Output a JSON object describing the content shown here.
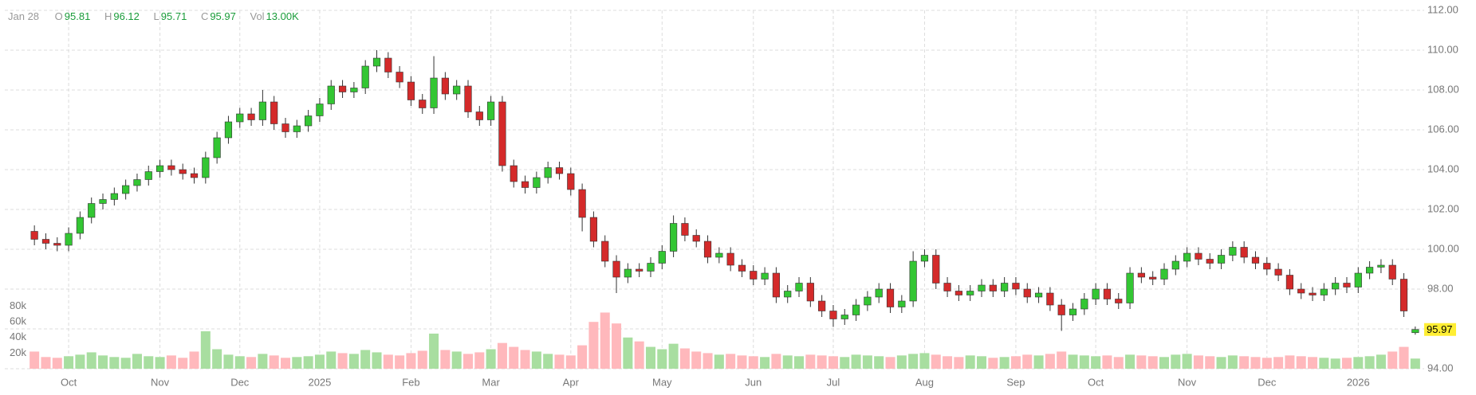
{
  "header": {
    "date": "Jan 28",
    "o": "O",
    "h": "H",
    "l": "L",
    "c": "C",
    "vol": "Vol",
    "vol_value": "13.00K"
  },
  "chart_data": {
    "type": "candlestick",
    "categories": [
      null,
      null,
      null,
      "Oct",
      null,
      null,
      null,
      null,
      null,
      null,
      null,
      "Nov",
      null,
      null,
      null,
      null,
      null,
      null,
      "Dec",
      null,
      null,
      null,
      null,
      null,
      null,
      "2025",
      null,
      null,
      null,
      null,
      null,
      null,
      null,
      "Feb",
      null,
      null,
      null,
      null,
      null,
      null,
      "Mar",
      null,
      null,
      null,
      null,
      null,
      null,
      "Apr",
      null,
      null,
      null,
      null,
      null,
      null,
      null,
      "May",
      null,
      null,
      null,
      null,
      null,
      null,
      null,
      "Jun",
      null,
      null,
      null,
      null,
      null,
      null,
      "Jul",
      null,
      null,
      null,
      null,
      null,
      null,
      null,
      "Aug",
      null,
      null,
      null,
      null,
      null,
      null,
      null,
      "Sep",
      null,
      null,
      null,
      null,
      null,
      null,
      "Oct",
      null,
      null,
      null,
      null,
      null,
      null,
      null,
      "Nov",
      null,
      null,
      null,
      null,
      null,
      null,
      "Dec",
      null,
      null,
      null,
      null,
      null,
      null,
      null,
      "2026",
      null,
      null,
      null,
      null,
      null
    ],
    "open": [
      100.9,
      100.5,
      100.3,
      100.2,
      100.8,
      101.6,
      102.3,
      102.5,
      102.8,
      103.2,
      103.5,
      103.9,
      104.2,
      104.0,
      103.8,
      103.6,
      104.6,
      105.6,
      106.4,
      106.8,
      106.5,
      107.4,
      106.3,
      105.9,
      106.2,
      106.7,
      107.3,
      108.2,
      107.9,
      108.1,
      109.2,
      109.6,
      108.9,
      108.4,
      107.5,
      107.1,
      108.6,
      107.8,
      108.2,
      106.9,
      106.5,
      107.4,
      104.2,
      103.4,
      103.1,
      103.6,
      104.1,
      103.8,
      103.0,
      101.6,
      100.4,
      99.4,
      98.6,
      99.0,
      98.9,
      99.3,
      99.9,
      101.3,
      100.7,
      100.4,
      99.6,
      99.8,
      99.2,
      98.9,
      98.5,
      98.8,
      97.6,
      97.9,
      98.3,
      97.4,
      96.9,
      96.5,
      96.7,
      97.2,
      97.6,
      98.0,
      97.1,
      97.4,
      99.4,
      99.7,
      98.3,
      97.9,
      97.7,
      97.9,
      98.2,
      97.9,
      98.3,
      98.0,
      97.6,
      97.8,
      97.2,
      96.7,
      97.0,
      97.5,
      98.0,
      97.5,
      97.3,
      98.8,
      98.6,
      98.5,
      99.0,
      99.4,
      99.8,
      99.5,
      99.3,
      99.7,
      100.1,
      99.6,
      99.3,
      99.0,
      98.7,
      98.0,
      97.8,
      97.7,
      98.0,
      98.3,
      98.1,
      98.8,
      99.1,
      99.2,
      98.5,
      95.81
    ],
    "high": [
      101.2,
      100.8,
      100.6,
      101.1,
      101.9,
      102.6,
      102.8,
      103.1,
      103.5,
      103.8,
      104.2,
      104.5,
      104.5,
      104.3,
      104.1,
      104.9,
      105.9,
      106.7,
      107.1,
      107.1,
      108.0,
      107.7,
      106.6,
      106.5,
      107.0,
      107.6,
      108.5,
      108.5,
      108.4,
      109.5,
      110.0,
      109.9,
      109.2,
      108.7,
      107.8,
      109.7,
      108.9,
      108.5,
      108.5,
      107.2,
      107.7,
      107.7,
      104.5,
      103.7,
      103.9,
      104.4,
      104.4,
      104.1,
      103.3,
      101.9,
      100.7,
      99.7,
      99.3,
      99.3,
      99.6,
      100.2,
      101.7,
      101.6,
      101.0,
      100.7,
      100.1,
      100.1,
      99.5,
      99.2,
      99.1,
      99.1,
      98.2,
      98.6,
      98.6,
      97.7,
      97.2,
      97.0,
      97.5,
      97.9,
      98.3,
      98.3,
      97.7,
      99.9,
      100.0,
      100.0,
      98.6,
      98.2,
      98.2,
      98.5,
      98.5,
      98.6,
      98.6,
      98.3,
      98.1,
      98.1,
      97.5,
      97.3,
      97.8,
      98.3,
      98.3,
      97.8,
      99.1,
      99.1,
      98.9,
      99.3,
      99.7,
      100.1,
      100.1,
      99.8,
      100.0,
      100.4,
      100.4,
      99.9,
      99.6,
      99.3,
      99.0,
      98.3,
      98.1,
      98.3,
      98.6,
      98.6,
      99.1,
      99.4,
      99.5,
      99.5,
      98.8,
      96.12
    ],
    "low": [
      100.2,
      100.0,
      99.9,
      99.9,
      100.5,
      101.3,
      102.0,
      102.2,
      102.5,
      102.9,
      103.2,
      103.6,
      103.7,
      103.5,
      103.3,
      103.3,
      104.3,
      105.3,
      106.1,
      106.2,
      106.2,
      106.0,
      105.6,
      105.6,
      105.9,
      106.4,
      107.0,
      107.6,
      107.6,
      107.8,
      108.9,
      108.6,
      108.1,
      107.2,
      106.8,
      106.8,
      107.5,
      107.5,
      106.6,
      106.2,
      106.2,
      103.9,
      103.1,
      102.8,
      102.8,
      103.3,
      103.5,
      102.7,
      100.9,
      100.1,
      99.1,
      97.8,
      98.3,
      98.6,
      98.6,
      99.0,
      99.6,
      100.4,
      100.1,
      99.3,
      99.3,
      98.9,
      98.6,
      98.2,
      98.2,
      97.3,
      97.3,
      97.6,
      97.1,
      96.6,
      96.1,
      96.2,
      96.4,
      96.9,
      97.3,
      96.8,
      96.8,
      97.1,
      99.1,
      98.0,
      97.6,
      97.4,
      97.4,
      97.6,
      97.6,
      97.6,
      97.7,
      97.3,
      97.3,
      96.9,
      95.9,
      96.4,
      96.7,
      97.2,
      97.2,
      97.0,
      97.0,
      98.3,
      98.2,
      98.2,
      98.7,
      99.1,
      99.2,
      99.0,
      99.0,
      99.4,
      99.3,
      99.0,
      98.7,
      98.4,
      97.7,
      97.5,
      97.4,
      97.4,
      97.7,
      97.8,
      97.8,
      98.5,
      98.8,
      98.2,
      96.6,
      95.71
    ],
    "close": [
      100.5,
      100.3,
      100.2,
      100.8,
      101.6,
      102.3,
      102.5,
      102.8,
      103.2,
      103.5,
      103.9,
      104.2,
      104.0,
      103.8,
      103.6,
      104.6,
      105.6,
      106.4,
      106.8,
      106.5,
      107.4,
      106.3,
      105.9,
      106.2,
      106.7,
      107.3,
      108.2,
      107.9,
      108.1,
      109.2,
      109.6,
      108.9,
      108.4,
      107.5,
      107.1,
      108.6,
      107.8,
      108.2,
      106.9,
      106.5,
      107.4,
      104.2,
      103.4,
      103.1,
      103.6,
      104.1,
      103.8,
      103.0,
      101.6,
      100.4,
      99.4,
      98.6,
      99.0,
      98.9,
      99.3,
      99.9,
      101.3,
      100.7,
      100.4,
      99.6,
      99.8,
      99.2,
      98.9,
      98.5,
      98.8,
      97.6,
      97.9,
      98.3,
      97.4,
      96.9,
      96.5,
      96.7,
      97.2,
      97.6,
      98.0,
      97.1,
      97.4,
      99.4,
      99.7,
      98.3,
      97.9,
      97.7,
      97.9,
      98.2,
      97.9,
      98.3,
      98.0,
      97.6,
      97.8,
      97.2,
      96.7,
      97.0,
      97.5,
      98.0,
      97.5,
      97.3,
      98.8,
      98.6,
      98.5,
      99.0,
      99.4,
      99.8,
      99.5,
      99.3,
      99.7,
      100.1,
      99.6,
      99.3,
      99.0,
      98.7,
      98.0,
      97.8,
      97.7,
      98.0,
      98.3,
      98.1,
      98.8,
      99.1,
      99.2,
      98.5,
      96.9,
      95.97
    ],
    "volume": [
      22000,
      15000,
      14000,
      16000,
      18000,
      21000,
      17000,
      15000,
      14000,
      19000,
      16000,
      15000,
      17000,
      14000,
      22000,
      48000,
      25000,
      18000,
      16000,
      15000,
      19000,
      17000,
      14000,
      15000,
      16000,
      18000,
      22000,
      20000,
      19000,
      24000,
      21000,
      18000,
      17000,
      20000,
      23000,
      45000,
      24000,
      22000,
      19000,
      21000,
      25000,
      33000,
      28000,
      24000,
      22000,
      19000,
      18000,
      17000,
      30000,
      60000,
      72000,
      58000,
      40000,
      35000,
      28000,
      25000,
      32000,
      26000,
      22000,
      20000,
      18000,
      19000,
      17000,
      16000,
      15000,
      19000,
      17000,
      16000,
      18000,
      17000,
      16000,
      15000,
      18000,
      17000,
      16000,
      15000,
      17000,
      19000,
      20000,
      18000,
      16000,
      15000,
      17000,
      16000,
      14000,
      15000,
      16000,
      18000,
      17000,
      19000,
      22000,
      18000,
      17000,
      16000,
      17000,
      15000,
      18000,
      17000,
      16000,
      15000,
      18000,
      19000,
      17000,
      16000,
      15000,
      17000,
      16000,
      15000,
      14000,
      15000,
      17000,
      16000,
      15000,
      14000,
      13000,
      14000,
      15000,
      16000,
      18000,
      22000,
      28000,
      13000
    ],
    "ylim": [
      94,
      112
    ],
    "yticks": [
      {
        "value": 94,
        "label": "94.00"
      },
      {
        "value": 96,
        "label": "96.00"
      },
      {
        "value": 98,
        "label": "98.00"
      },
      {
        "value": 100,
        "label": "100.00"
      },
      {
        "value": 102,
        "label": "102.00"
      },
      {
        "value": 104,
        "label": "104.00"
      },
      {
        "value": 106,
        "label": "106.00"
      },
      {
        "value": 108,
        "label": "108.00"
      },
      {
        "value": 110,
        "label": "110.00"
      },
      {
        "value": 112,
        "label": "112.00"
      }
    ],
    "volume_ylim": [
      0,
      100000
    ],
    "volume_ticks": [
      {
        "value": 20000,
        "label": "20k"
      },
      {
        "value": 40000,
        "label": "40k"
      },
      {
        "value": 60000,
        "label": "60k"
      },
      {
        "value": 80000,
        "label": "80k"
      }
    ],
    "grid": true,
    "up_color": "#33c633",
    "down_color": "#d42a2a",
    "volume_up_color": "#a8dea0",
    "volume_down_color": "#ffb8bc",
    "last_price_color": "#ffee33"
  }
}
